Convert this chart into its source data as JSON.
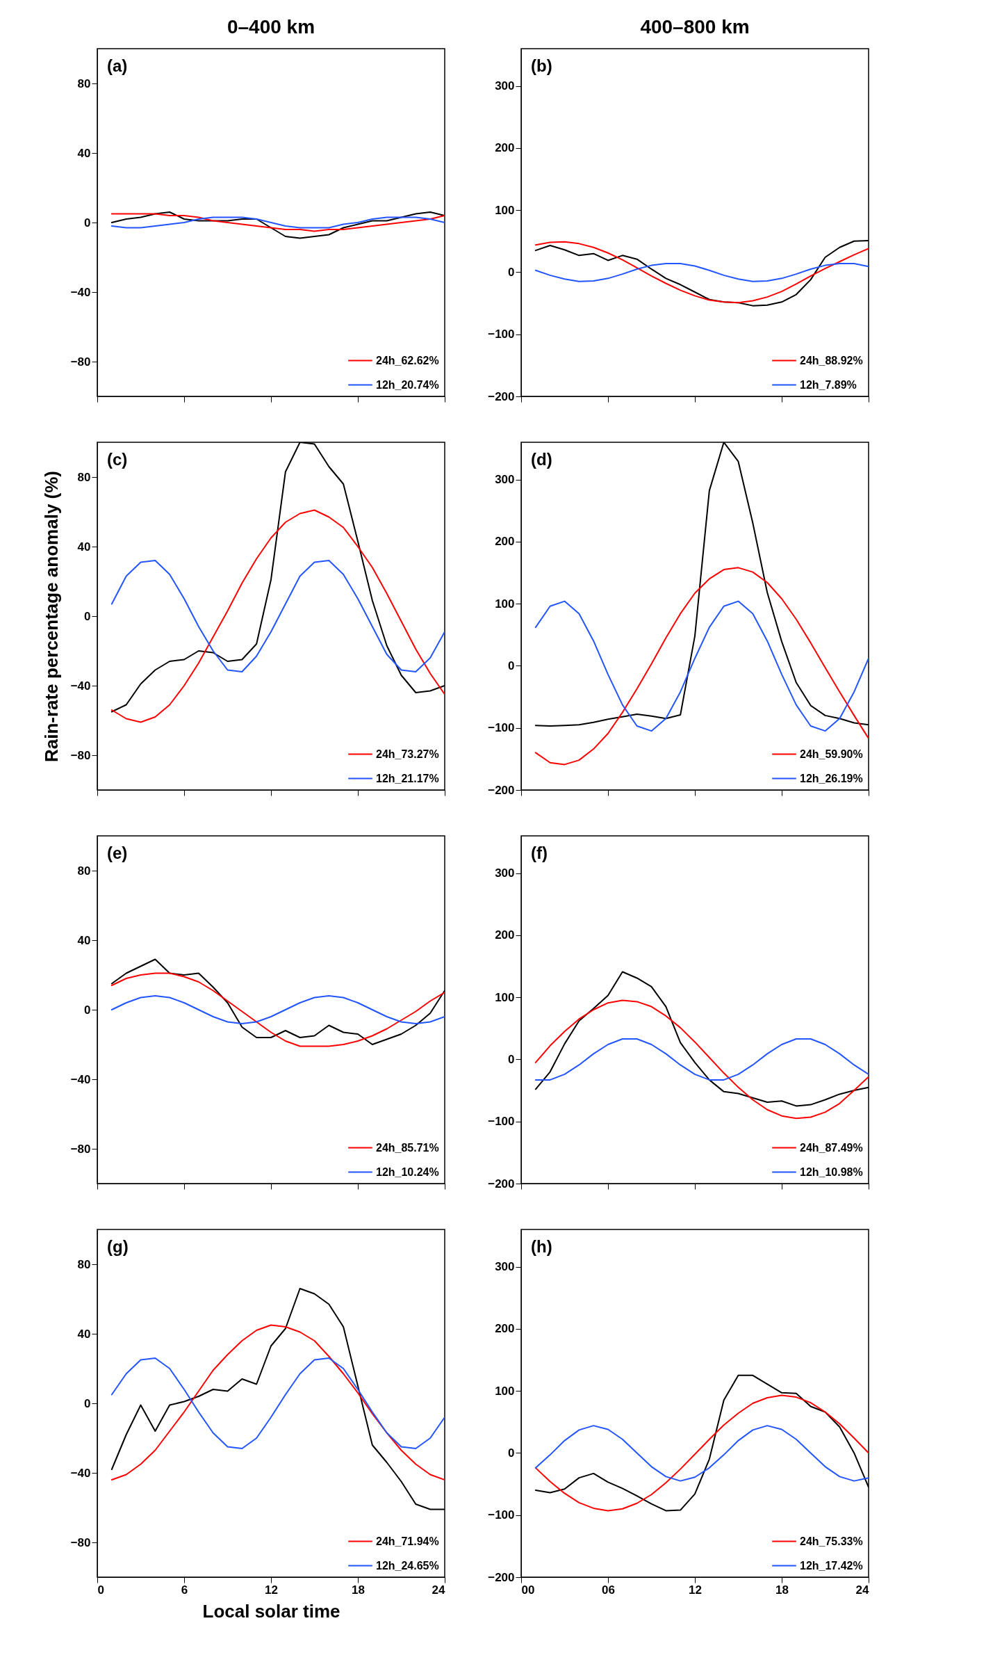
{
  "chart_data": [
    {
      "type": "line",
      "title": "0–400 km",
      "annotations": [
        "(a)"
      ],
      "x": [
        1,
        2,
        3,
        4,
        5,
        6,
        7,
        8,
        9,
        10,
        11,
        12,
        13,
        14,
        15,
        16,
        17,
        18,
        19,
        20,
        21,
        22,
        23,
        24
      ],
      "xlim": [
        0,
        24
      ],
      "xticks": [
        0,
        6,
        12,
        18,
        24
      ],
      "ylim": [
        -100,
        100
      ],
      "yticks": [
        -80,
        -40,
        0,
        40,
        80
      ],
      "tick_labels": "y",
      "legend": "bottom right",
      "series": [
        {
          "color": "#000000",
          "values": [
            0,
            2,
            3,
            5,
            6,
            2,
            1,
            1,
            1,
            2,
            2,
            -3,
            -8,
            -9,
            -8,
            -7,
            -3,
            -1,
            1,
            1,
            3,
            5,
            6,
            4
          ]
        },
        {
          "name": "24h_62.62%",
          "color": "#ff0000",
          "values": [
            5,
            5,
            5,
            5,
            4,
            4,
            3,
            1,
            0,
            -1,
            -2,
            -3,
            -4,
            -4,
            -5,
            -4,
            -4,
            -3,
            -2,
            -1,
            0,
            1,
            2,
            4
          ]
        },
        {
          "name": "12h_20.74%",
          "color": "#2255ff",
          "values": [
            -2,
            -3,
            -3,
            -2,
            -1,
            0,
            2,
            3,
            3,
            3,
            2,
            0,
            -2,
            -3,
            -3,
            -3,
            -1,
            0,
            2,
            3,
            3,
            3,
            2,
            0
          ]
        }
      ]
    },
    {
      "type": "line",
      "title": "400–800 km",
      "annotations": [
        "(b)"
      ],
      "x": [
        1,
        2,
        3,
        4,
        5,
        6,
        7,
        8,
        9,
        10,
        11,
        12,
        13,
        14,
        15,
        16,
        17,
        18,
        19,
        20,
        21,
        22,
        23,
        24
      ],
      "xlim": [
        0,
        24
      ],
      "xticks": [
        0,
        6,
        12,
        18,
        24
      ],
      "ylim": [
        -200,
        360
      ],
      "yticks": [
        -200,
        -100,
        0,
        100,
        200,
        300
      ],
      "tick_labels": "y",
      "legend": "bottom right",
      "series": [
        {
          "color": "#000000",
          "values": [
            35,
            43,
            36,
            27,
            30,
            19,
            27,
            21,
            5,
            -10,
            -20,
            -32,
            -44,
            -48,
            -49,
            -54,
            -53,
            -48,
            -36,
            -12,
            24,
            40,
            50,
            51
          ]
        },
        {
          "name": "24h_88.92%",
          "color": "#ff0000",
          "values": [
            44,
            48,
            49,
            46,
            40,
            31,
            20,
            7,
            -6,
            -18,
            -29,
            -38,
            -45,
            -48,
            -49,
            -46,
            -40,
            -31,
            -19,
            -6,
            6,
            17,
            28,
            38
          ]
        },
        {
          "name": "12h_7.89%",
          "color": "#2255ff",
          "values": [
            3,
            -5,
            -11,
            -15,
            -14,
            -10,
            -3,
            5,
            11,
            14,
            14,
            10,
            3,
            -5,
            -11,
            -15,
            -14,
            -10,
            -3,
            5,
            11,
            14,
            14,
            9
          ]
        }
      ]
    },
    {
      "type": "line",
      "ylabel": "Rain-rate percentage anomaly (%)",
      "annotations": [
        "(c)"
      ],
      "x": [
        1,
        2,
        3,
        4,
        5,
        6,
        7,
        8,
        9,
        10,
        11,
        12,
        13,
        14,
        15,
        16,
        17,
        18,
        19,
        20,
        21,
        22,
        23,
        24
      ],
      "xlim": [
        0,
        24
      ],
      "xticks": [
        0,
        6,
        12,
        18,
        24
      ],
      "ylim": [
        -100,
        100
      ],
      "yticks": [
        -80,
        -40,
        0,
        40,
        80
      ],
      "tick_labels": "y",
      "legend": "bottom right",
      "series": [
        {
          "color": "#000000",
          "values": [
            -55,
            -51,
            -39,
            -31,
            -26,
            -25,
            -20,
            -21,
            -26,
            -25,
            -16,
            21,
            83,
            100,
            99,
            86,
            76,
            43,
            9,
            -17,
            -34,
            -44,
            -43,
            -40
          ]
        },
        {
          "name": "24h_73.27%",
          "color": "#ff0000",
          "values": [
            -54,
            -59,
            -61,
            -58,
            -51,
            -40,
            -27,
            -12,
            3,
            19,
            33,
            45,
            54,
            59,
            61,
            57,
            51,
            40,
            28,
            13,
            -3,
            -19,
            -33,
            -45
          ]
        },
        {
          "name": "12h_21.17%",
          "color": "#2255ff",
          "values": [
            7,
            23,
            31,
            32,
            24,
            10,
            -6,
            -20,
            -31,
            -32,
            -23,
            -9,
            7,
            23,
            31,
            32,
            24,
            10,
            -6,
            -22,
            -31,
            -32,
            -24,
            -9
          ]
        }
      ]
    },
    {
      "type": "line",
      "annotations": [
        "(d)"
      ],
      "x": [
        1,
        2,
        3,
        4,
        5,
        6,
        7,
        8,
        9,
        10,
        11,
        12,
        13,
        14,
        15,
        16,
        17,
        18,
        19,
        20,
        21,
        22,
        23,
        24
      ],
      "xlim": [
        0,
        24
      ],
      "xticks": [
        0,
        6,
        12,
        18,
        24
      ],
      "ylim": [
        -200,
        360
      ],
      "yticks": [
        -200,
        -100,
        0,
        100,
        200,
        300
      ],
      "tick_labels": "y",
      "legend": "bottom right",
      "series": [
        {
          "color": "#000000",
          "values": [
            -96,
            -97,
            -96,
            -95,
            -91,
            -86,
            -82,
            -78,
            -81,
            -85,
            -79,
            48,
            282,
            360,
            329,
            230,
            118,
            39,
            -27,
            -64,
            -80,
            -85,
            -92,
            -95
          ]
        },
        {
          "name": "24h_59.90%",
          "color": "#ff0000",
          "values": [
            -140,
            -156,
            -159,
            -152,
            -134,
            -109,
            -75,
            -37,
            3,
            45,
            84,
            117,
            140,
            155,
            158,
            151,
            134,
            108,
            75,
            37,
            -3,
            -42,
            -80,
            -117
          ]
        },
        {
          "name": "12h_26.19%",
          "color": "#2255ff",
          "values": [
            62,
            96,
            104,
            84,
            40,
            -14,
            -63,
            -97,
            -105,
            -85,
            -42,
            12,
            62,
            96,
            104,
            84,
            40,
            -14,
            -63,
            -97,
            -105,
            -85,
            -42,
            12
          ]
        }
      ]
    },
    {
      "type": "line",
      "annotations": [
        "(e)"
      ],
      "x": [
        1,
        2,
        3,
        4,
        5,
        6,
        7,
        8,
        9,
        10,
        11,
        12,
        13,
        14,
        15,
        16,
        17,
        18,
        19,
        20,
        21,
        22,
        23,
        24
      ],
      "xlim": [
        0,
        24
      ],
      "xticks": [
        0,
        6,
        12,
        18,
        24
      ],
      "ylim": [
        -100,
        100
      ],
      "yticks": [
        -80,
        -40,
        0,
        40,
        80
      ],
      "tick_labels": "y",
      "legend": "bottom right",
      "series": [
        {
          "color": "#000000",
          "values": [
            15,
            21,
            25,
            29,
            21,
            20,
            21,
            13,
            4,
            -10,
            -16,
            -16,
            -12,
            -16,
            -15,
            -9,
            -13,
            -14,
            -20,
            -17,
            -14,
            -9,
            -2,
            11
          ]
        },
        {
          "name": "24h_85.71%",
          "color": "#ff0000",
          "values": [
            14,
            18,
            20,
            21,
            21,
            19,
            16,
            11,
            5,
            -1,
            -7,
            -13,
            -18,
            -21,
            -21,
            -21,
            -20,
            -18,
            -15,
            -11,
            -6,
            -1,
            5,
            10
          ]
        },
        {
          "name": "12h_10.24%",
          "color": "#2255ff",
          "values": [
            0,
            4,
            7,
            8,
            7,
            4,
            0,
            -4,
            -7,
            -8,
            -7,
            -4,
            0,
            4,
            7,
            8,
            7,
            4,
            0,
            -4,
            -7,
            -8,
            -7,
            -4
          ]
        }
      ]
    },
    {
      "type": "line",
      "annotations": [
        "(f)"
      ],
      "x": [
        1,
        2,
        3,
        4,
        5,
        6,
        7,
        8,
        9,
        10,
        11,
        12,
        13,
        14,
        15,
        16,
        17,
        18,
        19,
        20,
        21,
        22,
        23,
        24
      ],
      "xlim": [
        0,
        24
      ],
      "xticks": [
        0,
        6,
        12,
        18,
        24
      ],
      "ylim": [
        -200,
        360
      ],
      "yticks": [
        -200,
        -100,
        0,
        100,
        200,
        300
      ],
      "tick_labels": "y",
      "legend": "bottom right",
      "series": [
        {
          "color": "#000000",
          "values": [
            -48,
            -20,
            25,
            62,
            82,
            103,
            141,
            131,
            117,
            85,
            27,
            -5,
            -33,
            -52,
            -55,
            -62,
            -69,
            -67,
            -75,
            -73,
            -65,
            -56,
            -50,
            -45
          ]
        },
        {
          "name": "24h_87.49%",
          "color": "#ff0000",
          "values": [
            -5,
            22,
            45,
            65,
            80,
            91,
            95,
            93,
            85,
            70,
            51,
            28,
            3,
            -22,
            -45,
            -65,
            -81,
            -91,
            -95,
            -93,
            -85,
            -71,
            -50,
            -28
          ]
        },
        {
          "name": "12h_10.98%",
          "color": "#2255ff",
          "values": [
            -33,
            -33,
            -24,
            -9,
            9,
            24,
            33,
            33,
            24,
            9,
            -9,
            -24,
            -33,
            -33,
            -24,
            -9,
            9,
            24,
            33,
            33,
            24,
            9,
            -9,
            -24
          ]
        }
      ]
    },
    {
      "type": "line",
      "xlabel": "Local solar time",
      "annotations": [
        "(g)"
      ],
      "x": [
        1,
        2,
        3,
        4,
        5,
        6,
        7,
        8,
        9,
        10,
        11,
        12,
        13,
        14,
        15,
        16,
        17,
        18,
        19,
        20,
        21,
        22,
        23,
        24
      ],
      "xlim": [
        0,
        24
      ],
      "xticks": [
        0,
        6,
        12,
        18,
        24
      ],
      "ylim": [
        -100,
        100
      ],
      "yticks": [
        -80,
        -40,
        0,
        40,
        80
      ],
      "legend": "bottom right",
      "series": [
        {
          "color": "#000000",
          "values": [
            -38,
            -18,
            -1,
            -16,
            -1,
            1,
            4,
            8,
            7,
            14,
            11,
            33,
            43,
            66,
            63,
            57,
            44,
            10,
            -24,
            -34,
            -45,
            -58,
            -61,
            -61
          ]
        },
        {
          "name": "24h_71.94%",
          "color": "#ff0000",
          "values": [
            -44,
            -41,
            -35,
            -27,
            -16,
            -5,
            7,
            19,
            28,
            36,
            42,
            45,
            44,
            41,
            36,
            27,
            17,
            6,
            -6,
            -17,
            -27,
            -35,
            -41,
            -44
          ]
        },
        {
          "name": "12h_24.65%",
          "color": "#2255ff",
          "values": [
            5,
            17,
            25,
            26,
            20,
            8,
            -5,
            -17,
            -25,
            -26,
            -20,
            -8,
            5,
            17,
            25,
            26,
            20,
            8,
            -5,
            -17,
            -25,
            -26,
            -20,
            -8
          ]
        }
      ]
    },
    {
      "type": "line",
      "annotations": [
        "(h)"
      ],
      "x": [
        1,
        2,
        3,
        4,
        5,
        6,
        7,
        8,
        9,
        10,
        11,
        12,
        13,
        14,
        15,
        16,
        17,
        18,
        19,
        20,
        21,
        22,
        23,
        24
      ],
      "xlim": [
        0,
        24
      ],
      "xticks": [
        {
          "value": 0,
          "label": "00"
        },
        {
          "value": 6,
          "label": "06"
        },
        12,
        18,
        24
      ],
      "ylim": [
        -200,
        360
      ],
      "yticks": [
        -200,
        -100,
        0,
        100,
        200,
        300
      ],
      "legend": "bottom right",
      "series": [
        {
          "color": "#000000",
          "values": [
            -60,
            -64,
            -58,
            -40,
            -33,
            -47,
            -57,
            -69,
            -82,
            -93,
            -92,
            -66,
            -10,
            85,
            125,
            125,
            111,
            97,
            96,
            75,
            66,
            42,
            0,
            -55
          ]
        },
        {
          "name": "24h_75.33%",
          "color": "#ff0000",
          "values": [
            -24,
            -46,
            -65,
            -80,
            -89,
            -93,
            -90,
            -81,
            -67,
            -48,
            -26,
            -2,
            22,
            45,
            64,
            80,
            89,
            93,
            90,
            81,
            66,
            47,
            24,
            0
          ]
        },
        {
          "name": "12h_17.42%",
          "color": "#2255ff",
          "values": [
            -24,
            -3,
            20,
            37,
            44,
            38,
            22,
            0,
            -22,
            -38,
            -45,
            -39,
            -24,
            -3,
            20,
            37,
            44,
            38,
            22,
            0,
            -22,
            -38,
            -45,
            -40
          ]
        }
      ]
    }
  ]
}
